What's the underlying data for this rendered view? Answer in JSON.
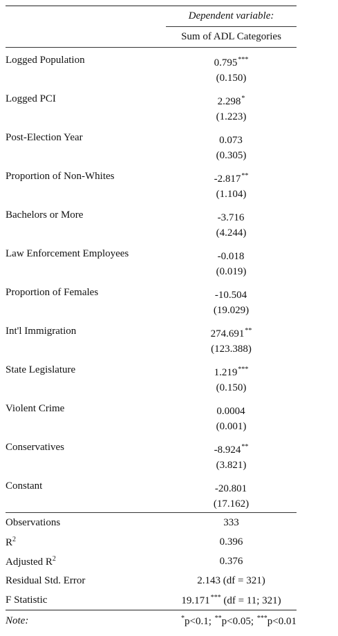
{
  "header": {
    "dependent_variable_label": "Dependent variable:",
    "dependent_variable_name": "Sum of ADL Categories"
  },
  "coefficients": [
    {
      "label": "Logged Population",
      "estimate": "0.795",
      "stars": "***",
      "se": "(0.150)"
    },
    {
      "label": "Logged PCI",
      "estimate": "2.298",
      "stars": "*",
      "se": "(1.223)"
    },
    {
      "label": "Post-Election Year",
      "estimate": "0.073",
      "stars": "",
      "se": "(0.305)"
    },
    {
      "label": "Proportion of Non-Whites",
      "estimate": "-2.817",
      "stars": "**",
      "se": "(1.104)"
    },
    {
      "label": "Bachelors or More",
      "estimate": "-3.716",
      "stars": "",
      "se": "(4.244)"
    },
    {
      "label": "Law Enforcement Employees",
      "estimate": "-0.018",
      "stars": "",
      "se": "(0.019)"
    },
    {
      "label": "Proportion of Females",
      "estimate": "-10.504",
      "stars": "",
      "se": "(19.029)"
    },
    {
      "label": "Int'l Immigration",
      "estimate": "274.691",
      "stars": "**",
      "se": "(123.388)"
    },
    {
      "label": "State Legislature",
      "estimate": "1.219",
      "stars": "***",
      "se": "(0.150)"
    },
    {
      "label": "Violent Crime",
      "estimate": "0.0004",
      "stars": "",
      "se": "(0.001)"
    },
    {
      "label": "Conservatives",
      "estimate": "-8.924",
      "stars": "**",
      "se": "(3.821)"
    },
    {
      "label": "Constant",
      "estimate": "-20.801",
      "stars": "",
      "se": "(17.162)"
    }
  ],
  "stats": {
    "observations_label": "Observations",
    "observations_value": "333",
    "r2_label": "R",
    "r2_sup": "2",
    "r2_value": "0.396",
    "adj_r2_label": "Adjusted R",
    "adj_r2_sup": "2",
    "adj_r2_value": "0.376",
    "rse_label": "Residual Std. Error",
    "rse_value": "2.143 (df = 321)",
    "f_label": "F Statistic",
    "f_value": "19.171",
    "f_stars": "***",
    "f_df": " (df = 11; 321)"
  },
  "note": {
    "label": "Note:",
    "s1": "*",
    "t1": "p<0.1; ",
    "s2": "**",
    "t2": "p<0.05; ",
    "s3": "***",
    "t3": "p<0.01"
  }
}
